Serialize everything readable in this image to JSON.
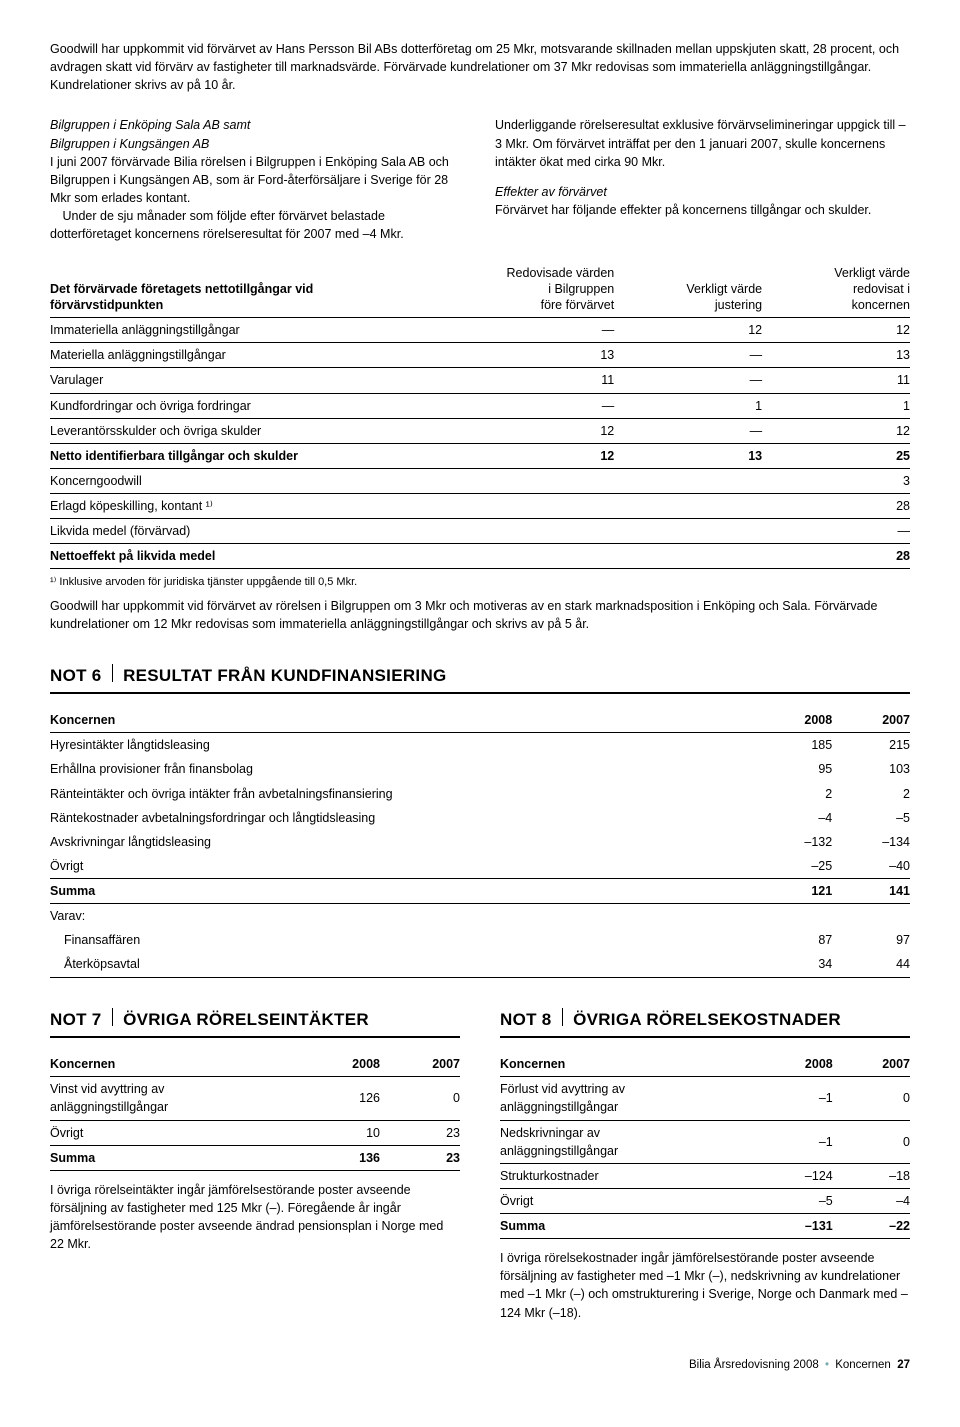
{
  "intro": {
    "p1": "Goodwill har uppkommit vid förvärvet av Hans Persson Bil ABs dotterföretag om 25 Mkr, motsvarande skillnaden mellan uppskjuten skatt, 28 procent, och avdragen skatt vid förvärv av fastigheter till marknadsvärde. Förvärvade kundrelationer om 37 Mkr redovisas som immateriella anläggningstillgångar. Kundrelationer skrivs av på 10 år."
  },
  "col_left": {
    "title": "Bilgruppen i Enköping Sala AB samt\nBilgruppen i Kungsängen AB",
    "p1": "I juni 2007 förvärvade Bilia rörelsen i Bilgruppen i Enköping Sala AB och Bilgruppen i Kungsängen AB, som är Ford-återförsäljare i Sverige för 28 Mkr som erlades kontant.",
    "p2": "Under de sju månader som följde efter förvärvet belastade dotterföretaget koncernens rörelseresultat för 2007 med –4 Mkr."
  },
  "col_right": {
    "p1": "Underliggande rörelseresultat exklusive förvärvselimineringar uppgick till –3 Mkr. Om förvärvet inträffat per den 1 januari 2007, skulle koncernens intäkter ökat med cirka 90 Mkr.",
    "title2": "Effekter av förvärvet",
    "p2": "Förvärvet har följande effekter på koncernens tillgångar och skulder."
  },
  "table1": {
    "header_title": "Det förvärvade företagets nettotillgångar vid förvärvstidpunkten",
    "h1": "Redovisade värden\ni Bilgruppen\nföre förvärvet",
    "h2": "Verkligt värde\njustering",
    "h3": "Verkligt värde\nredovisat i\nkoncernen",
    "rows": [
      {
        "label": "Immateriella anläggningstillgångar",
        "c1": "—",
        "c2": "12",
        "c3": "12"
      },
      {
        "label": "Materiella anläggningstillgångar",
        "c1": "13",
        "c2": "—",
        "c3": "13"
      },
      {
        "label": "Varulager",
        "c1": "11",
        "c2": "—",
        "c3": "11"
      },
      {
        "label": "Kundfordringar och övriga fordringar",
        "c1": "—",
        "c2": "1",
        "c3": "1"
      },
      {
        "label": "Leverantörsskulder och övriga skulder",
        "c1": "12",
        "c2": "—",
        "c3": "12"
      }
    ],
    "netto": {
      "label": "Netto identifierbara tillgångar och skulder",
      "c1": "12",
      "c2": "13",
      "c3": "25"
    },
    "goodwill": {
      "label": "Koncerngoodwill",
      "c3": "3"
    },
    "kope": {
      "label": "Erlagd köpeskilling, kontant ¹⁾",
      "c3": "28"
    },
    "likvida": {
      "label": "Likvida medel (förvärvad)",
      "c3": "—"
    },
    "total": {
      "label": "Nettoeffekt på likvida medel",
      "c3": "28"
    },
    "footnote": "¹⁾ Inklusive arvoden för juridiska tjänster uppgående till 0,5 Mkr.",
    "after": "Goodwill har uppkommit vid förvärvet av rörelsen i Bilgruppen om 3 Mkr och motiveras av en stark marknadsposition i Enköping och Sala. Förvärvade kundrelationer om 12 Mkr redovisas som immateriella anläggningstillgångar och skrivs av på 5 år."
  },
  "not6": {
    "num": "NOT 6",
    "title": "RESULTAT FRÅN KUNDFINANSIERING",
    "head": {
      "c0": "Koncernen",
      "c1": "2008",
      "c2": "2007"
    },
    "rows": [
      {
        "label": "Hyresintäkter långtidsleasing",
        "c1": "185",
        "c2": "215"
      },
      {
        "label": "Erhållna provisioner från finansbolag",
        "c1": "95",
        "c2": "103"
      },
      {
        "label": "Ränteintäkter och övriga intäkter från avbetalningsfinansiering",
        "c1": "2",
        "c2": "2"
      },
      {
        "label": "Räntekostnader avbetalningsfordringar och långtidsleasing",
        "c1": "–4",
        "c2": "–5"
      },
      {
        "label": "Avskrivningar långtidsleasing",
        "c1": "–132",
        "c2": "–134"
      },
      {
        "label": "Övrigt",
        "c1": "–25",
        "c2": "–40"
      }
    ],
    "summa": {
      "label": "Summa",
      "c1": "121",
      "c2": "141"
    },
    "varav": "Varav:",
    "sub": [
      {
        "label": "Finansaffären",
        "c1": "87",
        "c2": "97"
      },
      {
        "label": "Återköpsavtal",
        "c1": "34",
        "c2": "44"
      }
    ]
  },
  "not7": {
    "num": "NOT 7",
    "title": "ÖVRIGA RÖRELSEINTÄKTER",
    "head": {
      "c0": "Koncernen",
      "c1": "2008",
      "c2": "2007"
    },
    "rows": [
      {
        "label": "Vinst vid avyttring av\nanläggningstillgångar",
        "c1": "126",
        "c2": "0"
      },
      {
        "label": "Övrigt",
        "c1": "10",
        "c2": "23"
      }
    ],
    "summa": {
      "label": "Summa",
      "c1": "136",
      "c2": "23"
    },
    "after": "I övriga rörelseintäkter ingår jämförelsestörande poster avseende försäljning av fastigheter med 125 Mkr (–). Föregående år ingår jämförelsestörande poster avseende ändrad pensionsplan i Norge med 22 Mkr."
  },
  "not8": {
    "num": "NOT 8",
    "title": "ÖVRIGA RÖRELSEKOSTNADER",
    "head": {
      "c0": "Koncernen",
      "c1": "2008",
      "c2": "2007"
    },
    "rows": [
      {
        "label": "Förlust vid avyttring av\nanläggningstillgångar",
        "c1": "–1",
        "c2": "0"
      },
      {
        "label": "Nedskrivningar av\nanläggningstillgångar",
        "c1": "–1",
        "c2": "0"
      },
      {
        "label": "Strukturkostnader",
        "c1": "–124",
        "c2": "–18"
      },
      {
        "label": "Övrigt",
        "c1": "–5",
        "c2": "–4"
      }
    ],
    "summa": {
      "label": "Summa",
      "c1": "–131",
      "c2": "–22"
    },
    "after": "I övriga rörelsekostnader ingår jämförelsestörande poster avseende försäljning av fastigheter med –1 Mkr (–), nedskrivning av kundrelationer med –1 Mkr (–) och omstrukturering i Sverige, Norge och Danmark med –124 Mkr (–18)."
  },
  "footer": {
    "left": "Bilia Årsredovisning 2008",
    "right": "Koncernen",
    "page": "27"
  }
}
